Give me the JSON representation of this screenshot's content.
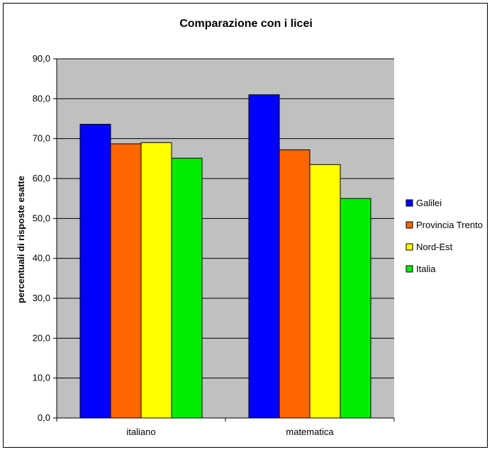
{
  "chart_data": {
    "type": "bar",
    "title": "Comparazione con i licei",
    "xlabel": "",
    "ylabel": "percentuali di risposte esatte",
    "categories": [
      "italiano",
      "matematica"
    ],
    "ylim": [
      0,
      90
    ],
    "yticks": [
      "0,0",
      "10,0",
      "20,0",
      "30,0",
      "40,0",
      "50,0",
      "60,0",
      "70,0",
      "80,0",
      "90,0"
    ],
    "grid": true,
    "legend_position": "right",
    "plot_background": "#c0c0c0",
    "series": [
      {
        "name": "Galilei",
        "color": "#0000ff",
        "values": [
          73.6,
          81.0
        ]
      },
      {
        "name": "Provincia Trento",
        "color": "#ff6600",
        "values": [
          68.7,
          67.2
        ]
      },
      {
        "name": "Nord-Est",
        "color": "#ffff00",
        "values": [
          69.0,
          63.5
        ]
      },
      {
        "name": "Italia",
        "color": "#00ee00",
        "values": [
          65.1,
          55.0
        ]
      }
    ]
  }
}
